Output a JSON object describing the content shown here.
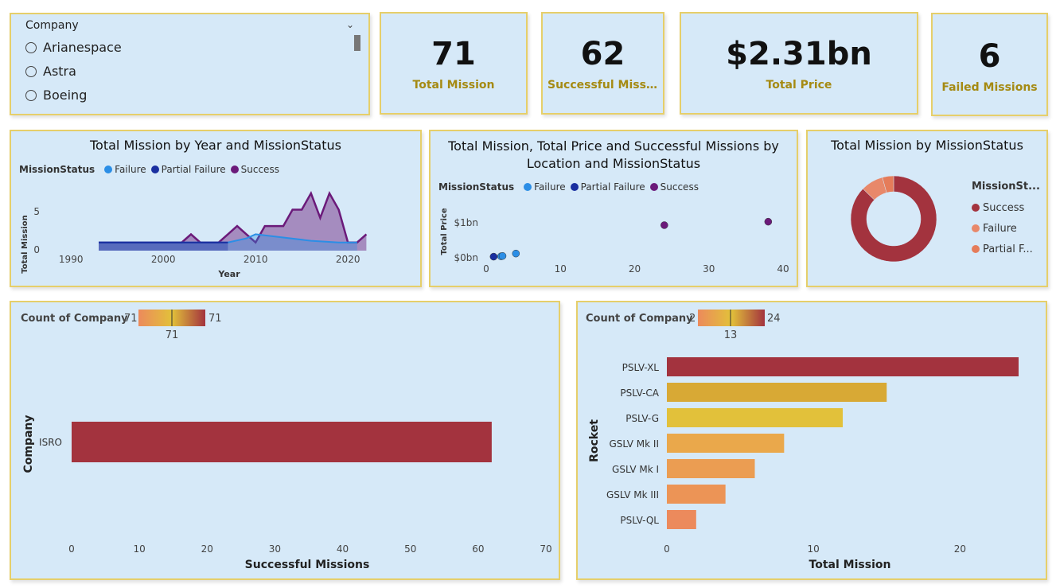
{
  "slicer": {
    "title": "Company",
    "items": [
      "Arianespace",
      "Astra",
      "Boeing"
    ]
  },
  "kpis": {
    "total_mission": {
      "value": "71",
      "label": "Total Mission"
    },
    "successful_missions": {
      "value": "62",
      "label": "Successful Missi..."
    },
    "total_price": {
      "value": "$2.31bn",
      "label": "Total Price"
    },
    "failed_missions": {
      "value": "6",
      "label": "Failed Missions"
    }
  },
  "colors": {
    "failure": "#2b8ee6",
    "partial_failure": "#1a2fa0",
    "success": "#6b1a7a",
    "donut_success": "#a3333e",
    "donut_failure": "#e8886a",
    "donut_partial": "#e57c5a",
    "card_bg": "#d6e9f8",
    "card_border": "#e6cf6a"
  },
  "legend": {
    "title": "MissionStatus",
    "failure": "Failure",
    "partial_failure": "Partial Failure",
    "success": "Success"
  },
  "area_chart": {
    "title": "Total Mission by Year and MissionStatus",
    "xlabel": "Year",
    "ylabel": "Total Mission",
    "x_ticks": [
      "1990",
      "2000",
      "2010",
      "2020"
    ],
    "y_ticks": [
      "0",
      "5"
    ]
  },
  "scatter_chart": {
    "title": "Total Mission, Total Price and Successful Missions by Location and MissionStatus",
    "ylabel": "Total Price",
    "x_ticks": [
      "0",
      "10",
      "20",
      "30",
      "40"
    ],
    "y_ticks": [
      "$0bn",
      "$1bn"
    ]
  },
  "donut_chart": {
    "title": "Total Mission by MissionStatus",
    "legend_title": "MissionSt...",
    "items": [
      "Success",
      "Failure",
      "Partial F..."
    ]
  },
  "company_bar": {
    "gradient_label": "Count of Company",
    "gradient_min": "71",
    "gradient_max": "71",
    "gradient_mid": "71",
    "ylabel": "Company",
    "xlabel": "Successful Missions",
    "x_ticks": [
      "0",
      "10",
      "20",
      "30",
      "40",
      "50",
      "60",
      "70"
    ]
  },
  "rocket_bar": {
    "gradient_label": "Count of Company",
    "gradient_min": "2",
    "gradient_max": "24",
    "gradient_mid": "13",
    "ylabel": "Rocket",
    "xlabel": "Total Mission",
    "x_ticks": [
      "0",
      "10",
      "20"
    ]
  },
  "chart_data": [
    {
      "type": "area",
      "title": "Total Mission by Year and MissionStatus",
      "xlabel": "Year",
      "ylabel": "Total Mission",
      "xlim": [
        1988,
        2023
      ],
      "ylim": [
        0,
        8
      ],
      "series": [
        {
          "name": "Success",
          "x": [
            1993,
            1997,
            2001,
            2002,
            2003,
            2004,
            2005,
            2006,
            2007,
            2008,
            2009,
            2010,
            2011,
            2012,
            2013,
            2014,
            2015,
            2016,
            2017,
            2018,
            2019,
            2020,
            2021,
            2022
          ],
          "values": [
            1,
            1,
            1,
            1,
            2,
            1,
            1,
            1,
            2,
            3,
            2,
            1,
            3,
            3,
            3,
            5,
            5,
            7,
            4,
            7,
            5,
            1,
            1,
            2
          ]
        },
        {
          "name": "Failure",
          "x": [
            1993,
            2007,
            2009,
            2010,
            2013,
            2016,
            2019,
            2021
          ],
          "values": [
            1,
            1,
            1.5,
            2,
            1.6,
            1.2,
            1,
            1
          ]
        },
        {
          "name": "Partial Failure",
          "x": [
            1993,
            1997,
            2007
          ],
          "values": [
            1,
            1,
            1
          ]
        }
      ]
    },
    {
      "type": "scatter",
      "title": "Total Mission, Total Price and Successful Missions by Location and MissionStatus",
      "ylabel": "Total Price",
      "xlim": [
        0,
        40
      ],
      "ylim": [
        0,
        1.2
      ],
      "series": [
        {
          "name": "Failure",
          "points": [
            [
              2,
              0.02
            ],
            [
              4,
              0.1
            ],
            [
              2.2,
              0.03
            ]
          ]
        },
        {
          "name": "Partial Failure",
          "points": [
            [
              1,
              0.01
            ]
          ]
        },
        {
          "name": "Success",
          "points": [
            [
              24,
              0.92
            ],
            [
              38,
              1.02
            ]
          ]
        }
      ]
    },
    {
      "type": "pie",
      "title": "Total Mission by MissionStatus",
      "categories": [
        "Success",
        "Failure",
        "Partial Failure"
      ],
      "values": [
        62,
        6,
        3
      ]
    },
    {
      "type": "bar",
      "categories": [
        "ISRO"
      ],
      "values": [
        62
      ],
      "xlabel": "Successful Missions",
      "ylabel": "Company",
      "xlim": [
        0,
        70
      ]
    },
    {
      "type": "bar",
      "categories": [
        "PSLV-XL",
        "PSLV-CA",
        "PSLV-G",
        "GSLV Mk II",
        "GSLV Mk I",
        "GSLV Mk III",
        "PSLV-QL"
      ],
      "values": [
        24,
        15,
        12,
        8,
        6,
        4,
        2
      ],
      "xlabel": "Total Mission",
      "ylabel": "Rocket",
      "xlim": [
        0,
        24
      ]
    }
  ]
}
